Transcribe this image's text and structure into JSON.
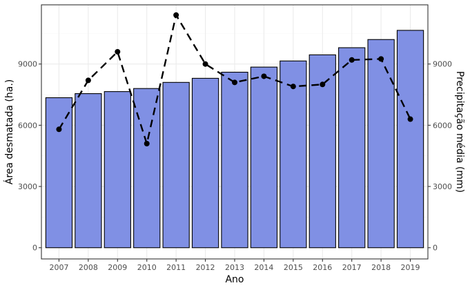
{
  "chart_data": {
    "type": "bar",
    "categories": [
      "2007",
      "2008",
      "2009",
      "2010",
      "2011",
      "2012",
      "2013",
      "2014",
      "2015",
      "2016",
      "2017",
      "2018",
      "2019"
    ],
    "series": [
      {
        "name": "",
        "type": "bar",
        "axis": "left",
        "values": [
          7350,
          7550,
          7650,
          7800,
          8100,
          8300,
          8600,
          8850,
          9150,
          9450,
          9800,
          10200,
          10650
        ]
      },
      {
        "name": "",
        "type": "line",
        "axis": "right",
        "line_style": "dashed",
        "values": [
          5800,
          8200,
          9600,
          5100,
          11400,
          9000,
          8100,
          8400,
          7900,
          8000,
          9200,
          9250,
          6300
        ]
      }
    ],
    "xlabel": "Ano",
    "ylabel": "Área desmatada (ha.)",
    "y2label": "Precipitação média (mm)",
    "ylim": [
      -550,
      11900
    ],
    "y2lim": [
      -550,
      11900
    ],
    "yticks": [
      "0",
      "3000",
      "6000",
      "9000"
    ],
    "y2ticks": [
      "0",
      "3000",
      "6000",
      "9000"
    ],
    "grid": true,
    "legend": "none",
    "colors": {
      "bar_fill": "#8090e4",
      "bar_stroke": "#000000",
      "line": "#000000",
      "grid_major": "#ebebeb",
      "grid_minor": "#f5f5f5",
      "panel_border": "#333333"
    }
  }
}
